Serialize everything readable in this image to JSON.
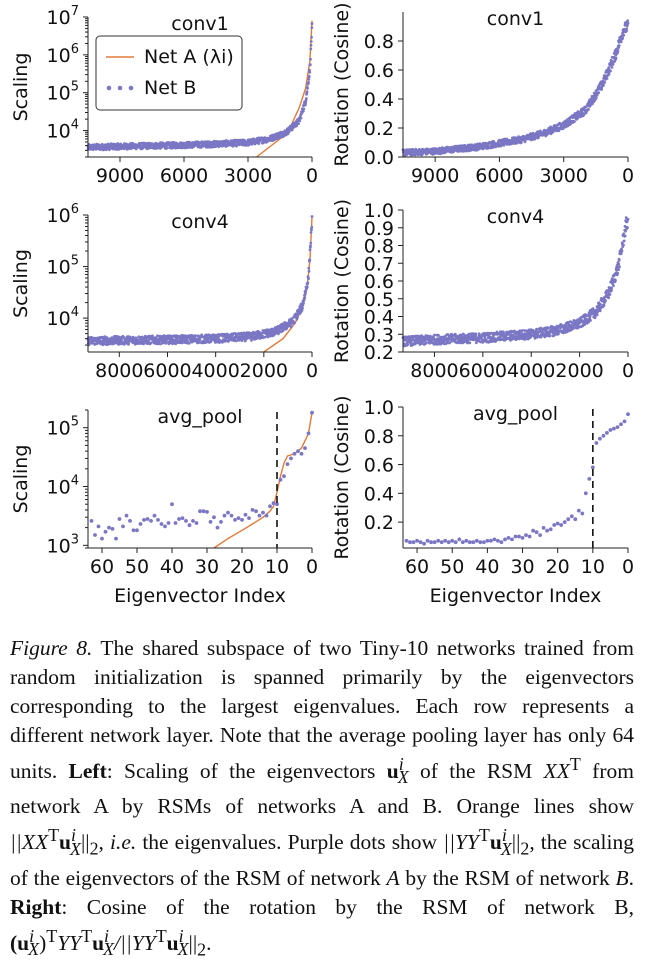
{
  "chart_data": [
    {
      "id": "conv1-scaling",
      "type": "scatter",
      "title": "conv1",
      "ylabel": "Scaling",
      "xlabel": "",
      "xlim": [
        10500,
        0
      ],
      "x_reversed": true,
      "xticks": [
        "9000",
        "6000",
        "3000",
        "0"
      ],
      "xtick_values": [
        9000,
        6000,
        3000,
        0
      ],
      "yscale": "log",
      "ylim": [
        2000,
        10000000
      ],
      "yticks": [
        "10^7",
        "10^6",
        "10^5",
        "10^4"
      ],
      "ytick_values": [
        10000000,
        1000000,
        100000,
        10000
      ],
      "legend": {
        "placement": "top-left",
        "entries": [
          "Net A (λi)",
          "Net B"
        ]
      },
      "series": [
        {
          "name": "Net A (λi)",
          "kind": "line",
          "color": "#e07b39",
          "x": [
            2600,
            1500,
            1000,
            600,
            300,
            100,
            0
          ],
          "y": [
            2000,
            6000,
            13000,
            40000,
            130000,
            700000,
            8000000
          ]
        },
        {
          "name": "Net B",
          "kind": "scatter-band",
          "color": "#7b77c4",
          "x": [
            10500,
            9000,
            7000,
            5000,
            3000,
            2000,
            1200,
            600,
            300,
            100,
            0
          ],
          "y": [
            3600,
            3800,
            4000,
            4300,
            4800,
            6000,
            9000,
            18000,
            60000,
            400000,
            6000000
          ]
        }
      ]
    },
    {
      "id": "conv1-rotation",
      "type": "scatter",
      "title": "conv1",
      "ylabel": "Rotation (Cosine)",
      "xlabel": "",
      "xlim": [
        10500,
        0
      ],
      "x_reversed": true,
      "xticks": [
        "9000",
        "6000",
        "3000",
        "0"
      ],
      "xtick_values": [
        9000,
        6000,
        3000,
        0
      ],
      "ylim": [
        0.0,
        1.0
      ],
      "yticks": [
        "0.8",
        "0.6",
        "0.4",
        "0.2",
        "0.0"
      ],
      "ytick_values": [
        0.8,
        0.6,
        0.4,
        0.2,
        0.0
      ],
      "series": [
        {
          "name": "Net B",
          "kind": "scatter-band",
          "color": "#7b77c4",
          "x": [
            10500,
            9000,
            7000,
            5000,
            4000,
            3000,
            2000,
            1200,
            600,
            200,
            0
          ],
          "y": [
            0.03,
            0.04,
            0.07,
            0.12,
            0.16,
            0.22,
            0.32,
            0.5,
            0.7,
            0.88,
            0.9
          ]
        }
      ]
    },
    {
      "id": "conv4-scaling",
      "type": "scatter",
      "title": "conv4",
      "ylabel": "Scaling",
      "xlabel": "",
      "xlim": [
        9300,
        0
      ],
      "x_reversed": true,
      "xticks": [
        "8000",
        "6000",
        "4000",
        "2000",
        "0"
      ],
      "xtick_values": [
        8000,
        6000,
        4000,
        2000,
        0
      ],
      "yscale": "log",
      "ylim": [
        2200,
        1000000
      ],
      "yticks": [
        "10^6",
        "10^5",
        "10^4"
      ],
      "ytick_values": [
        1000000,
        100000,
        10000
      ],
      "series": [
        {
          "name": "Net A (λi)",
          "kind": "line",
          "color": "#e07b39",
          "x": [
            2000,
            1200,
            700,
            400,
            200,
            80,
            0
          ],
          "y": [
            2200,
            4000,
            8000,
            16000,
            40000,
            150000,
            900000
          ]
        },
        {
          "name": "Net B",
          "kind": "scatter-band",
          "color": "#7b77c4",
          "x": [
            9300,
            8000,
            6000,
            4000,
            2500,
            1500,
            800,
            400,
            150,
            0
          ],
          "y": [
            3600,
            3700,
            3800,
            4000,
            4400,
            5500,
            8500,
            17000,
            60000,
            800000
          ]
        }
      ]
    },
    {
      "id": "conv4-rotation",
      "type": "scatter",
      "title": "conv4",
      "ylabel": "Rotation (Cosine)",
      "xlabel": "",
      "xlim": [
        9300,
        0
      ],
      "x_reversed": true,
      "xticks": [
        "8000",
        "6000",
        "4000",
        "2000",
        "0"
      ],
      "xtick_values": [
        8000,
        6000,
        4000,
        2000,
        0
      ],
      "ylim": [
        0.2,
        1.0
      ],
      "yticks": [
        "1.0",
        "0.9",
        "0.8",
        "0.7",
        "0.6",
        "0.5",
        "0.4",
        "0.3",
        "0.2"
      ],
      "ytick_values": [
        1.0,
        0.9,
        0.8,
        0.7,
        0.6,
        0.5,
        0.4,
        0.3,
        0.2
      ],
      "series": [
        {
          "name": "Net B",
          "kind": "scatter-band",
          "color": "#7b77c4",
          "x": [
            9300,
            8000,
            6000,
            4000,
            3000,
            2000,
            1300,
            800,
            400,
            100,
            0
          ],
          "y": [
            0.26,
            0.27,
            0.28,
            0.3,
            0.32,
            0.36,
            0.43,
            0.53,
            0.68,
            0.9,
            0.95
          ]
        }
      ]
    },
    {
      "id": "avgpool-scaling",
      "type": "scatter",
      "title": "avg_pool",
      "ylabel": "Scaling",
      "xlabel": "Eigenvector Index",
      "xlim": [
        64,
        0
      ],
      "x_reversed": true,
      "xticks": [
        "60",
        "50",
        "40",
        "30",
        "20",
        "10",
        "0"
      ],
      "xtick_values": [
        60,
        50,
        40,
        30,
        20,
        10,
        0
      ],
      "yscale": "log",
      "ylim": [
        900,
        200000
      ],
      "yticks": [
        "10^5",
        "10^4",
        "10^3"
      ],
      "ytick_values": [
        100000,
        10000,
        1000
      ],
      "vline": 10,
      "series": [
        {
          "name": "Net A (λi)",
          "kind": "line",
          "color": "#e07b39",
          "x": [
            28,
            24,
            20,
            17,
            14,
            12,
            11,
            10,
            9,
            8,
            7,
            5,
            3,
            1,
            0
          ],
          "y": [
            900,
            1300,
            1800,
            2300,
            3000,
            3800,
            4600,
            8000,
            15000,
            25000,
            33000,
            36000,
            45000,
            80000,
            180000
          ]
        },
        {
          "name": "Net B",
          "kind": "scatter",
          "color": "#7b77c4",
          "x": [
            63,
            62,
            61,
            60,
            59,
            58,
            57,
            56,
            55,
            54,
            53,
            52,
            51,
            50,
            49,
            48,
            47,
            46,
            45,
            44,
            43,
            42,
            41,
            40,
            39,
            38,
            37,
            36,
            35,
            34,
            33,
            32,
            31,
            30,
            29,
            28,
            27,
            26,
            25,
            24,
            23,
            22,
            21,
            20,
            19,
            18,
            17,
            16,
            15,
            14,
            13,
            12,
            11,
            10,
            9,
            8,
            7,
            6,
            5,
            4,
            3,
            2,
            1,
            0
          ],
          "y": [
            2600,
            1500,
            2100,
            1300,
            1700,
            2000,
            1900,
            1300,
            2800,
            2100,
            3200,
            2600,
            1800,
            1800,
            2300,
            2700,
            2800,
            2600,
            3200,
            2700,
            2300,
            2100,
            2400,
            5000,
            2400,
            2800,
            2900,
            2600,
            2200,
            2600,
            2400,
            3800,
            3800,
            3700,
            2500,
            3000,
            2000,
            2500,
            3200,
            3600,
            3200,
            2700,
            2900,
            2700,
            3300,
            2900,
            4000,
            3800,
            3200,
            3600,
            3200,
            4600,
            5200,
            5000,
            13000,
            15000,
            24000,
            30000,
            36000,
            40000,
            36000,
            45000,
            80000,
            180000
          ]
        }
      ]
    },
    {
      "id": "avgpool-rotation",
      "type": "scatter",
      "title": "avg_pool",
      "ylabel": "Rotation (Cosine)",
      "xlabel": "Eigenvector Index",
      "xlim": [
        64,
        0
      ],
      "x_reversed": true,
      "xticks": [
        "60",
        "50",
        "40",
        "30",
        "20",
        "10",
        "0"
      ],
      "xtick_values": [
        60,
        50,
        40,
        30,
        20,
        10,
        0
      ],
      "ylim": [
        0.02,
        1.0
      ],
      "yticks": [
        "1.0",
        "0.8",
        "0.6",
        "0.4",
        "0.2"
      ],
      "ytick_values": [
        1.0,
        0.8,
        0.6,
        0.4,
        0.2
      ],
      "vline": 10,
      "series": [
        {
          "name": "Net B",
          "kind": "scatter",
          "color": "#7b77c4",
          "x": [
            63,
            62,
            61,
            60,
            59,
            58,
            57,
            56,
            55,
            54,
            53,
            52,
            51,
            50,
            49,
            48,
            47,
            46,
            45,
            44,
            43,
            42,
            41,
            40,
            39,
            38,
            37,
            36,
            35,
            34,
            33,
            32,
            31,
            30,
            29,
            28,
            27,
            26,
            25,
            24,
            23,
            22,
            21,
            20,
            19,
            18,
            17,
            16,
            15,
            14,
            13,
            12,
            11,
            10,
            9,
            8,
            7,
            6,
            5,
            4,
            3,
            2,
            1,
            0
          ],
          "y": [
            0.07,
            0.06,
            0.06,
            0.07,
            0.06,
            0.05,
            0.07,
            0.06,
            0.06,
            0.07,
            0.06,
            0.07,
            0.06,
            0.07,
            0.06,
            0.08,
            0.06,
            0.07,
            0.06,
            0.06,
            0.07,
            0.06,
            0.06,
            0.07,
            0.07,
            0.08,
            0.07,
            0.06,
            0.08,
            0.09,
            0.08,
            0.1,
            0.1,
            0.09,
            0.11,
            0.1,
            0.14,
            0.13,
            0.11,
            0.16,
            0.14,
            0.15,
            0.18,
            0.19,
            0.18,
            0.2,
            0.22,
            0.24,
            0.22,
            0.28,
            0.26,
            0.4,
            0.5,
            0.58,
            0.75,
            0.78,
            0.8,
            0.82,
            0.84,
            0.85,
            0.86,
            0.88,
            0.9,
            0.95
          ]
        }
      ]
    }
  ],
  "caption": {
    "label": "Figure 8.",
    "part1": " The shared subspace of two Tiny-10 networks trained from random initialization is spanned primarily by the eigenvectors corresponding to the largest eigenvalues. Each row represents a different network layer. Note that the average pooling layer has only 64 units. ",
    "left_label": "Left",
    "part2": ": Scaling of the eigenvectors ",
    "sym_u": "u",
    "sym_sup_i": "i",
    "sym_sub_X": "X",
    "part3": " of the RSM ",
    "sym_XX": "XX",
    "sym_T": "T",
    "part4": " from network A by RSMs of networks A and B. Orange lines show ",
    "norm_a": "||XX",
    "norm_b": "u",
    "norm_c": "||",
    "sub_2": "2",
    "comma": ", ",
    "ie": "i.e.",
    "part5": " the eigenvalues. Purple dots show ",
    "norm_d": "||YY",
    "part6": ", the scaling of the eigenvectors of the RSM of network ",
    "net_a": "A",
    "part7": " by the RSM of network ",
    "net_b": "B",
    "period": ". ",
    "right_label": "Right",
    "part8": ": Cosine of the rotation by the RSM of network B, ",
    "rot_a": "(u",
    "rot_b": ")",
    "rot_c": "YY",
    "rot_d": "u",
    "rot_e": "/||YY",
    "end": "."
  }
}
